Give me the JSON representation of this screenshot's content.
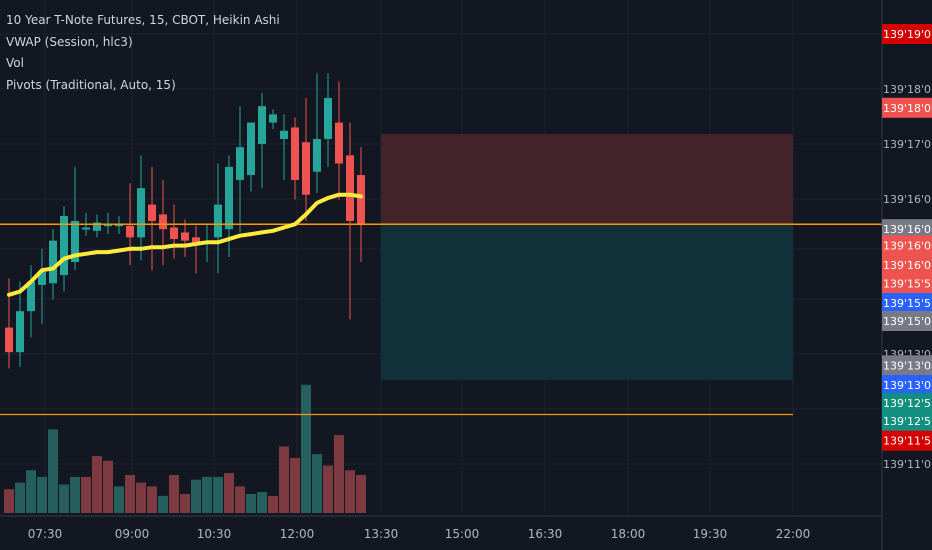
{
  "legend": {
    "title": "10 Year T-Note Futures, 15, CBOT, Heikin Ashi",
    "vwap": "VWAP (Session, hlc3)",
    "vol": "Vol",
    "pivots": "Pivots (Traditional, Auto, 15)"
  },
  "colors": {
    "background": "#131722",
    "grid": "#1f2330",
    "up": "#26a69a",
    "down": "#ef5350",
    "vwap": "#ffeb3b",
    "line_orange": "#ff9800",
    "zone_red": "#42232a",
    "zone_teal": "#11313a",
    "tag_red": "#ef5350",
    "tag_darkred": "#d50000",
    "tag_gray": "#787b86",
    "tag_blue": "#2962ff",
    "tag_teal": "#138f7f"
  },
  "chart_data": {
    "type": "candlestick",
    "x_ticks": [
      "07:30",
      "09:00",
      "10:30",
      "12:00",
      "13:30",
      "15:00",
      "16:30",
      "18:00",
      "19:30",
      "22:00"
    ],
    "y_ticks": [
      "139'19'0",
      "139'18'0",
      "139'17'0",
      "139'16'0",
      "139'15'0",
      "139'13'0",
      "139'11'0"
    ],
    "candles": [
      {
        "o": 139.47,
        "h": 139.5,
        "l": 139.445,
        "c": 139.455
      },
      {
        "o": 139.455,
        "h": 139.498,
        "l": 139.446,
        "c": 139.48
      },
      {
        "o": 139.48,
        "h": 139.508,
        "l": 139.464,
        "c": 139.498
      },
      {
        "o": 139.496,
        "h": 139.518,
        "l": 139.472,
        "c": 139.504
      },
      {
        "o": 139.497,
        "h": 139.53,
        "l": 139.487,
        "c": 139.523
      },
      {
        "o": 139.502,
        "h": 139.544,
        "l": 139.492,
        "c": 139.538
      },
      {
        "o": 139.51,
        "h": 139.568,
        "l": 139.505,
        "c": 139.535
      },
      {
        "o": 139.53,
        "h": 139.54,
        "l": 139.526,
        "c": 139.531
      },
      {
        "o": 139.529,
        "h": 139.539,
        "l": 139.525,
        "c": 139.534
      },
      {
        "o": 139.532,
        "h": 139.54,
        "l": 139.527,
        "c": 139.533
      },
      {
        "o": 139.533,
        "h": 139.538,
        "l": 139.527,
        "c": 139.533
      },
      {
        "o": 139.532,
        "h": 139.558,
        "l": 139.508,
        "c": 139.525
      },
      {
        "o": 139.525,
        "h": 139.575,
        "l": 139.511,
        "c": 139.555
      },
      {
        "o": 139.545,
        "h": 139.568,
        "l": 139.505,
        "c": 139.535
      },
      {
        "o": 139.539,
        "h": 139.56,
        "l": 139.508,
        "c": 139.53
      },
      {
        "o": 139.531,
        "h": 139.545,
        "l": 139.512,
        "c": 139.524
      },
      {
        "o": 139.528,
        "h": 139.536,
        "l": 139.513,
        "c": 139.523
      },
      {
        "o": 139.525,
        "h": 139.532,
        "l": 139.503,
        "c": 139.522
      },
      {
        "o": 139.521,
        "h": 139.533,
        "l": 139.51,
        "c": 139.523
      },
      {
        "o": 139.525,
        "h": 139.57,
        "l": 139.503,
        "c": 139.545
      },
      {
        "o": 139.53,
        "h": 139.575,
        "l": 139.513,
        "c": 139.568
      },
      {
        "o": 139.56,
        "h": 139.605,
        "l": 139.528,
        "c": 139.58
      },
      {
        "o": 139.563,
        "h": 139.595,
        "l": 139.553,
        "c": 139.595
      },
      {
        "o": 139.582,
        "h": 139.613,
        "l": 139.555,
        "c": 139.605
      },
      {
        "o": 139.595,
        "h": 139.603,
        "l": 139.591,
        "c": 139.6
      },
      {
        "o": 139.585,
        "h": 139.6,
        "l": 139.56,
        "c": 139.59
      },
      {
        "o": 139.592,
        "h": 139.598,
        "l": 139.548,
        "c": 139.56
      },
      {
        "o": 139.583,
        "h": 139.61,
        "l": 139.535,
        "c": 139.551
      },
      {
        "o": 139.565,
        "h": 139.625,
        "l": 139.552,
        "c": 139.585
      },
      {
        "o": 139.585,
        "h": 139.625,
        "l": 139.568,
        "c": 139.61
      },
      {
        "o": 139.595,
        "h": 139.62,
        "l": 139.548,
        "c": 139.57
      },
      {
        "o": 139.575,
        "h": 139.595,
        "l": 139.475,
        "c": 139.535
      },
      {
        "o": 139.563,
        "h": 139.58,
        "l": 139.51,
        "c": 139.533
      }
    ],
    "volume": [
      {
        "v": 25,
        "up": false
      },
      {
        "v": 32,
        "up": true
      },
      {
        "v": 45,
        "up": true
      },
      {
        "v": 38,
        "up": true
      },
      {
        "v": 88,
        "up": true
      },
      {
        "v": 30,
        "up": true
      },
      {
        "v": 38,
        "up": true
      },
      {
        "v": 38,
        "up": false
      },
      {
        "v": 60,
        "up": false
      },
      {
        "v": 55,
        "up": false
      },
      {
        "v": 28,
        "up": true
      },
      {
        "v": 40,
        "up": false
      },
      {
        "v": 32,
        "up": false
      },
      {
        "v": 28,
        "up": false
      },
      {
        "v": 18,
        "up": true
      },
      {
        "v": 40,
        "up": false
      },
      {
        "v": 20,
        "up": false
      },
      {
        "v": 35,
        "up": true
      },
      {
        "v": 38,
        "up": true
      },
      {
        "v": 38,
        "up": true
      },
      {
        "v": 42,
        "up": false
      },
      {
        "v": 28,
        "up": false
      },
      {
        "v": 20,
        "up": true
      },
      {
        "v": 22,
        "up": true
      },
      {
        "v": 18,
        "up": false
      },
      {
        "v": 70,
        "up": false
      },
      {
        "v": 58,
        "up": false
      },
      {
        "v": 135,
        "up": true
      },
      {
        "v": 62,
        "up": true
      },
      {
        "v": 50,
        "up": false
      },
      {
        "v": 82,
        "up": false
      },
      {
        "v": 45,
        "up": false
      },
      {
        "v": 40,
        "up": false
      }
    ],
    "vwap": [
      139.49,
      139.492,
      139.498,
      139.505,
      139.506,
      139.512,
      139.514,
      139.515,
      139.516,
      139.516,
      139.517,
      139.518,
      139.518,
      139.519,
      139.519,
      139.52,
      139.52,
      139.521,
      139.522,
      139.522,
      139.524,
      139.526,
      139.527,
      139.528,
      139.529,
      139.531,
      139.533,
      139.539,
      139.546,
      139.549,
      139.551,
      139.551,
      139.55
    ],
    "current_price": 139.533,
    "red_zone": [
      139.533,
      139.588
    ],
    "teal_zone": [
      139.438,
      139.533
    ],
    "pivot_line_price": 139.417,
    "tags": [
      {
        "label": "139'19'0",
        "price": 139.649,
        "color": "#d50000"
      },
      {
        "label": "139'18'0",
        "price": 139.604,
        "color": "#ef5350"
      },
      {
        "label": "139'16'0",
        "price": 139.53,
        "color": "#787b86"
      },
      {
        "label": "139'16'0",
        "price": 139.52,
        "color": "#ef5350"
      },
      {
        "label": "139'16'0",
        "price": 139.508,
        "color": "#ef5350"
      },
      {
        "label": "139'15'5",
        "price": 139.497,
        "color": "#ef5350"
      },
      {
        "label": "139'15'5",
        "price": 139.485,
        "color": "#2962ff"
      },
      {
        "label": "139'15'0",
        "price": 139.474,
        "color": "#787b86"
      },
      {
        "label": "139'13'0",
        "price": 139.447,
        "color": "#787b86"
      },
      {
        "label": "139'13'0",
        "price": 139.435,
        "color": "#2962ff"
      },
      {
        "label": "139'12'5",
        "price": 139.424,
        "color": "#138f7f"
      },
      {
        "label": "139'12'5",
        "price": 139.413,
        "color": "#138f7f"
      },
      {
        "label": "139'11'5",
        "price": 139.401,
        "color": "#d50000"
      }
    ]
  }
}
